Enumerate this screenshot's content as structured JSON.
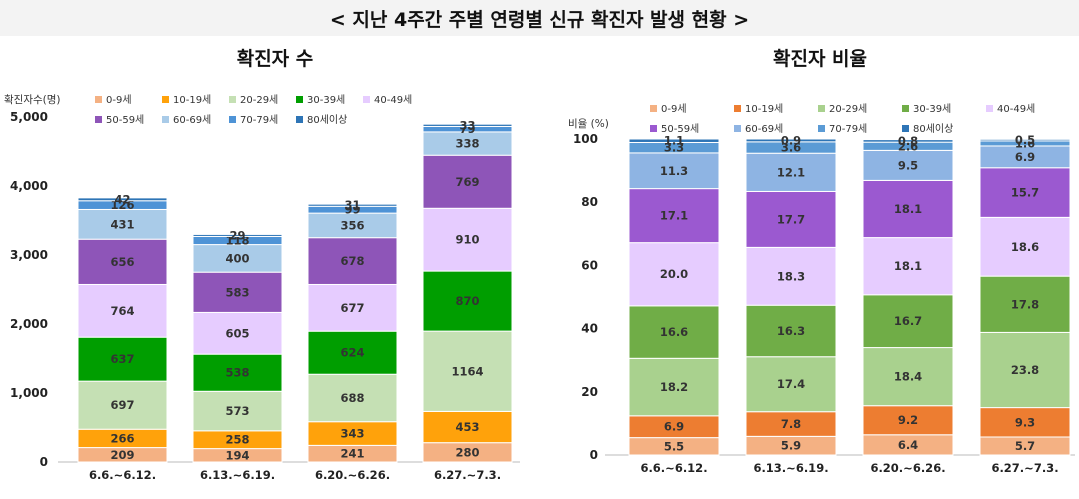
{
  "page_title": "< 지난 4주간 주별 연령별 신규 확진자 발생 현황 >",
  "chart_data": [
    {
      "type": "bar",
      "stacked": true,
      "title": "확진자 수",
      "ylabel": "확진자수(명)",
      "ylim": [
        0,
        5000
      ],
      "yticks": [
        "0",
        "1,000",
        "2,000",
        "3,000",
        "4,000",
        "5,000"
      ],
      "categories": [
        "6.6.~6.12.",
        "6.13.~6.19.",
        "6.20.~6.26.",
        "6.27.~7.3."
      ],
      "legend_position": "top",
      "series": [
        {
          "name": "0-9세",
          "color": "#f4b183",
          "values": [
            209,
            194,
            241,
            280
          ]
        },
        {
          "name": "10-19세",
          "color": "#ffa20b",
          "values": [
            266,
            258,
            343,
            453
          ]
        },
        {
          "name": "20-29세",
          "color": "#c5e0b4",
          "values": [
            697,
            573,
            688,
            1164
          ]
        },
        {
          "name": "30-39세",
          "color": "#009e00",
          "values": [
            637,
            538,
            624,
            870
          ]
        },
        {
          "name": "40-49세",
          "color": "#e6ccff",
          "values": [
            764,
            605,
            677,
            910
          ]
        },
        {
          "name": "50-59세",
          "color": "#8e55b8",
          "values": [
            656,
            583,
            678,
            769
          ]
        },
        {
          "name": "60-69세",
          "color": "#a9cbe8",
          "values": [
            431,
            400,
            356,
            338
          ]
        },
        {
          "name": "70-79세",
          "color": "#4e93d6",
          "values": [
            126,
            118,
            99,
            79
          ]
        },
        {
          "name": "80세이상",
          "color": "#2e75b6",
          "values": [
            42,
            29,
            31,
            33
          ]
        }
      ]
    },
    {
      "type": "bar",
      "stacked": true,
      "title": "확진자 비율",
      "ylabel": "비율 (%)",
      "ylim": [
        0,
        100
      ],
      "yticks": [
        "0",
        "20",
        "40",
        "60",
        "80",
        "100"
      ],
      "categories": [
        "6.6.~6.12.",
        "6.13.~6.19.",
        "6.20.~6.26.",
        "6.27.~7.3."
      ],
      "legend_position": "top",
      "series": [
        {
          "name": "0-9세",
          "color": "#f4b183",
          "values": [
            "5.5",
            "5.9",
            "6.4",
            "5.7"
          ]
        },
        {
          "name": "10-19세",
          "color": "#ed7d31",
          "values": [
            "6.9",
            "7.8",
            "9.2",
            "9.3"
          ]
        },
        {
          "name": "20-29세",
          "color": "#a9d18e",
          "values": [
            "18.2",
            "17.4",
            "18.4",
            "23.8"
          ]
        },
        {
          "name": "30-39세",
          "color": "#70ad47",
          "values": [
            "16.6",
            "16.3",
            "16.7",
            "17.8"
          ]
        },
        {
          "name": "40-49세",
          "color": "#e6ccff",
          "values": [
            "20.0",
            "18.3",
            "18.1",
            "18.6"
          ]
        },
        {
          "name": "50-59세",
          "color": "#9b59d0",
          "values": [
            "17.1",
            "17.7",
            "18.1",
            "15.7"
          ]
        },
        {
          "name": "60-69세",
          "color": "#8eb4e3",
          "values": [
            "11.3",
            "12.1",
            "9.5",
            "6.9"
          ]
        },
        {
          "name": "70-79세",
          "color": "#5b9bd5",
          "values": [
            "3.3",
            "3.6",
            "2.6",
            "1.6"
          ]
        },
        {
          "name": "80세이상",
          "color": "#2e75b6",
          "values": [
            "1.1",
            "0.9",
            "0.8",
            "0.5"
          ]
        }
      ]
    }
  ]
}
